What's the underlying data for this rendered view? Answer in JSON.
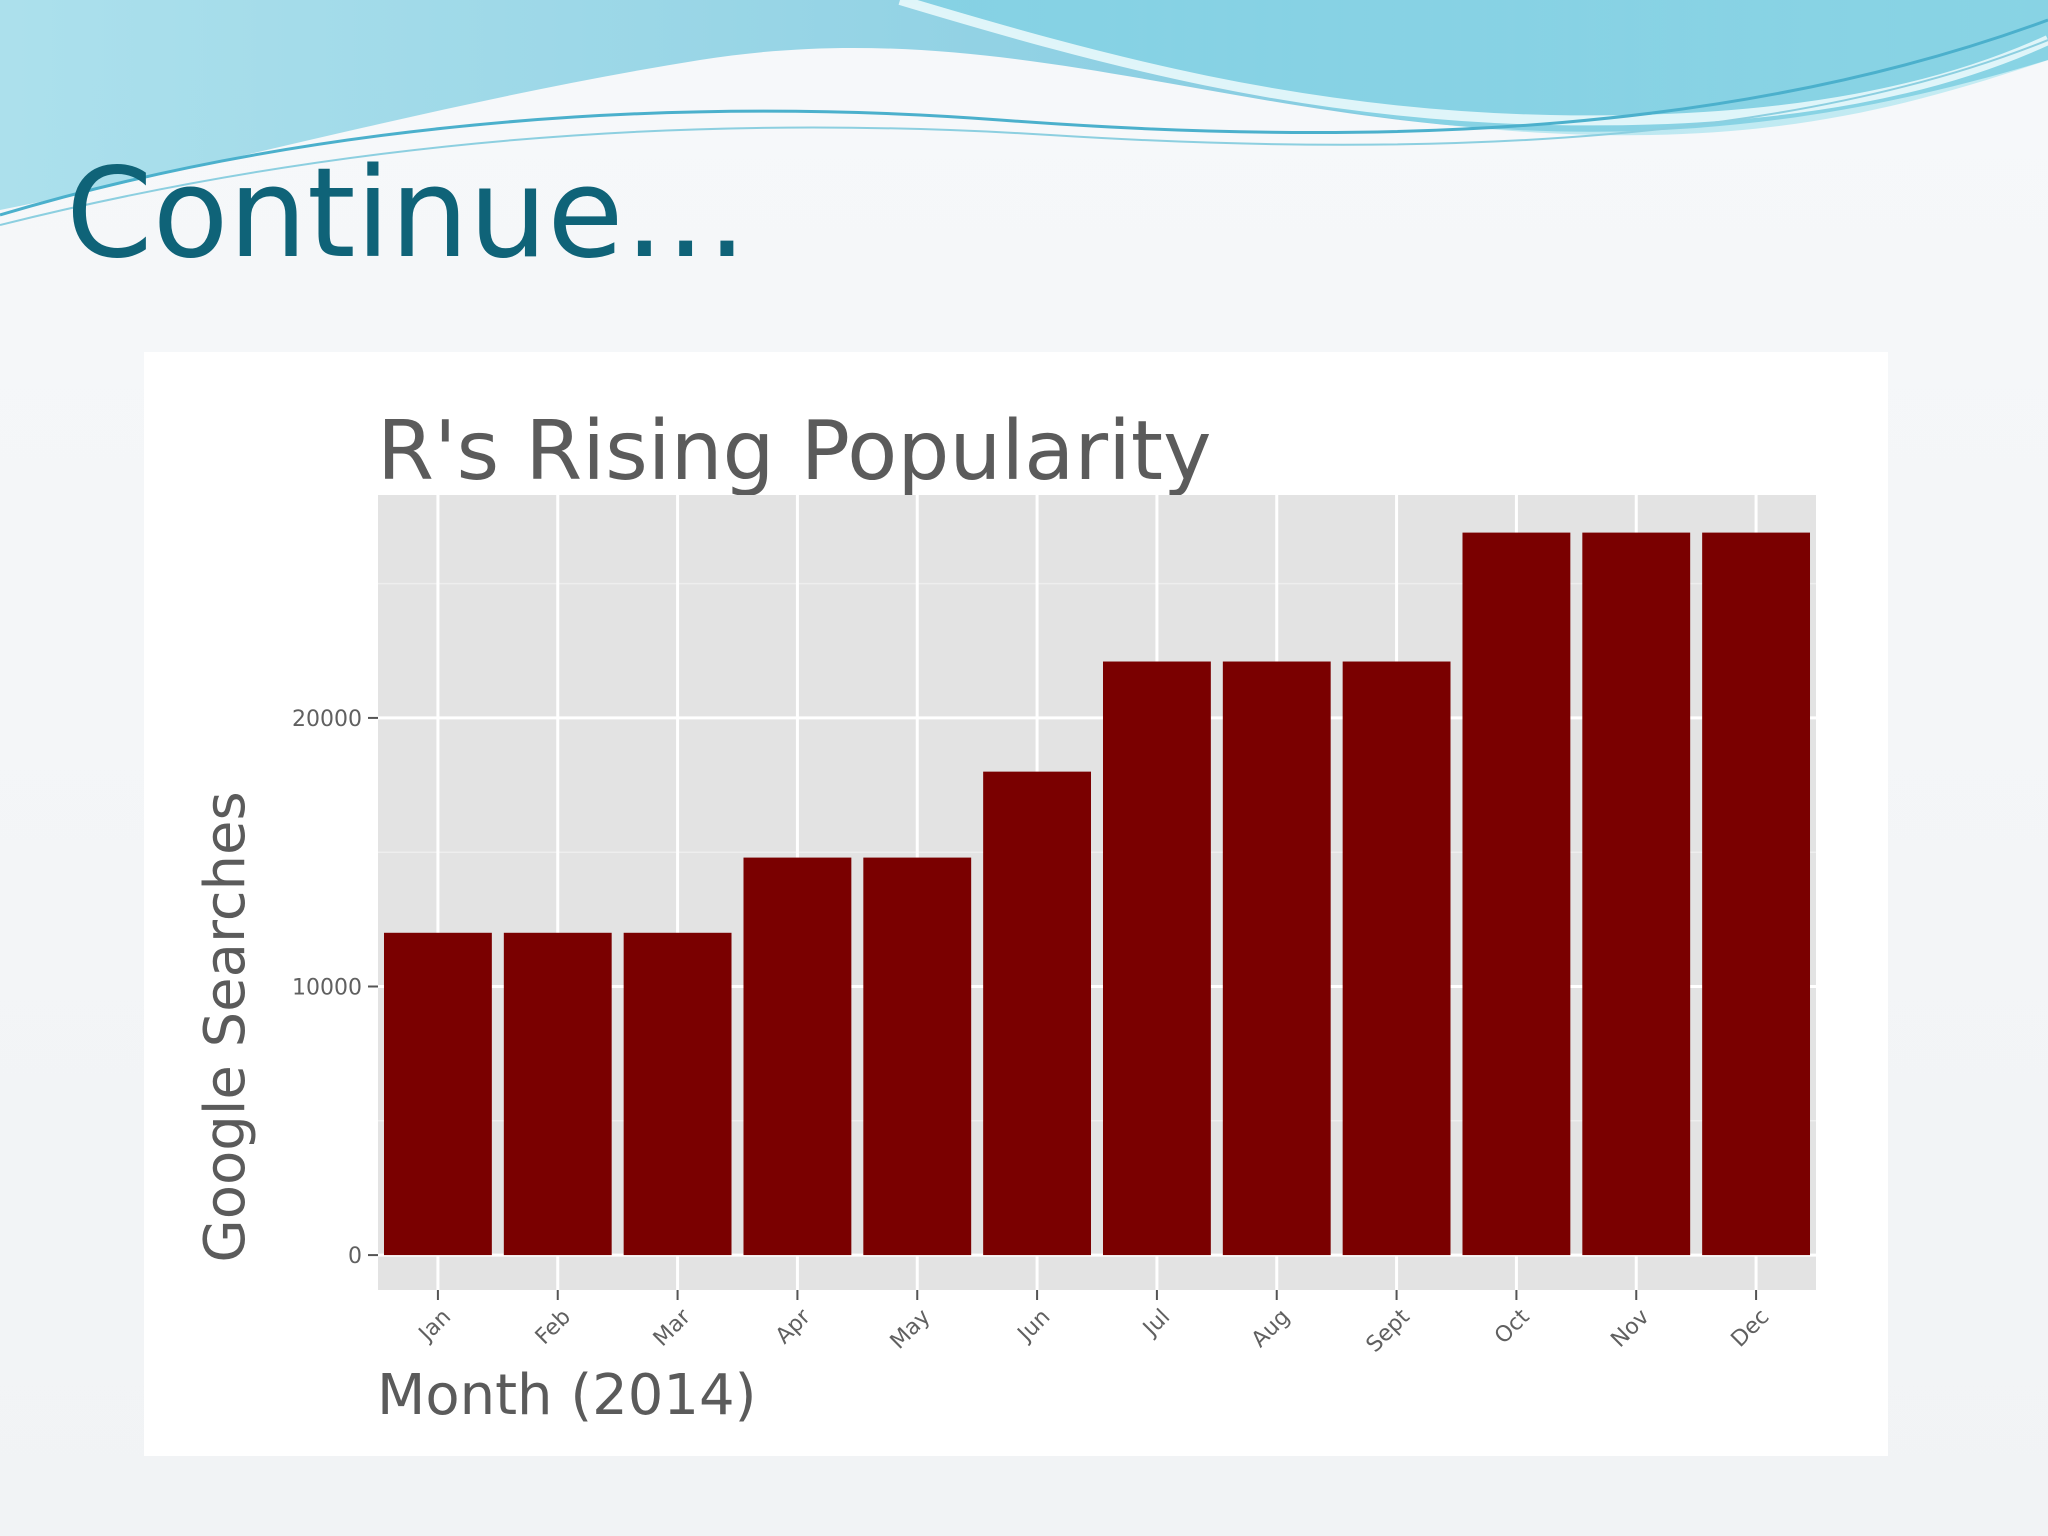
{
  "slide": {
    "title": "Continue…"
  },
  "colors": {
    "title": "#0f6378",
    "bar": "#7a0000",
    "panel": "#e3e3e3",
    "gridline": "#ffffff",
    "wave_light": "#cfeef5",
    "wave_mid": "#7fd3e3",
    "wave_dark": "#3aa7c8"
  },
  "chart_data": {
    "type": "bar",
    "title": "R's Rising Popularity",
    "xlabel": "Month (2014)",
    "ylabel": "Google Searches",
    "categories": [
      "Jan",
      "Feb",
      "Mar",
      "Apr",
      "May",
      "Jun",
      "Jul",
      "Aug",
      "Sept",
      "Oct",
      "Nov",
      "Dec"
    ],
    "values": [
      12000,
      12000,
      12000,
      14800,
      14800,
      18000,
      22100,
      22100,
      22100,
      26900,
      26900,
      26900
    ],
    "yticks": [
      0,
      10000,
      20000
    ],
    "ylim": [
      -1300,
      28300
    ],
    "grid": true,
    "legend": "none"
  }
}
